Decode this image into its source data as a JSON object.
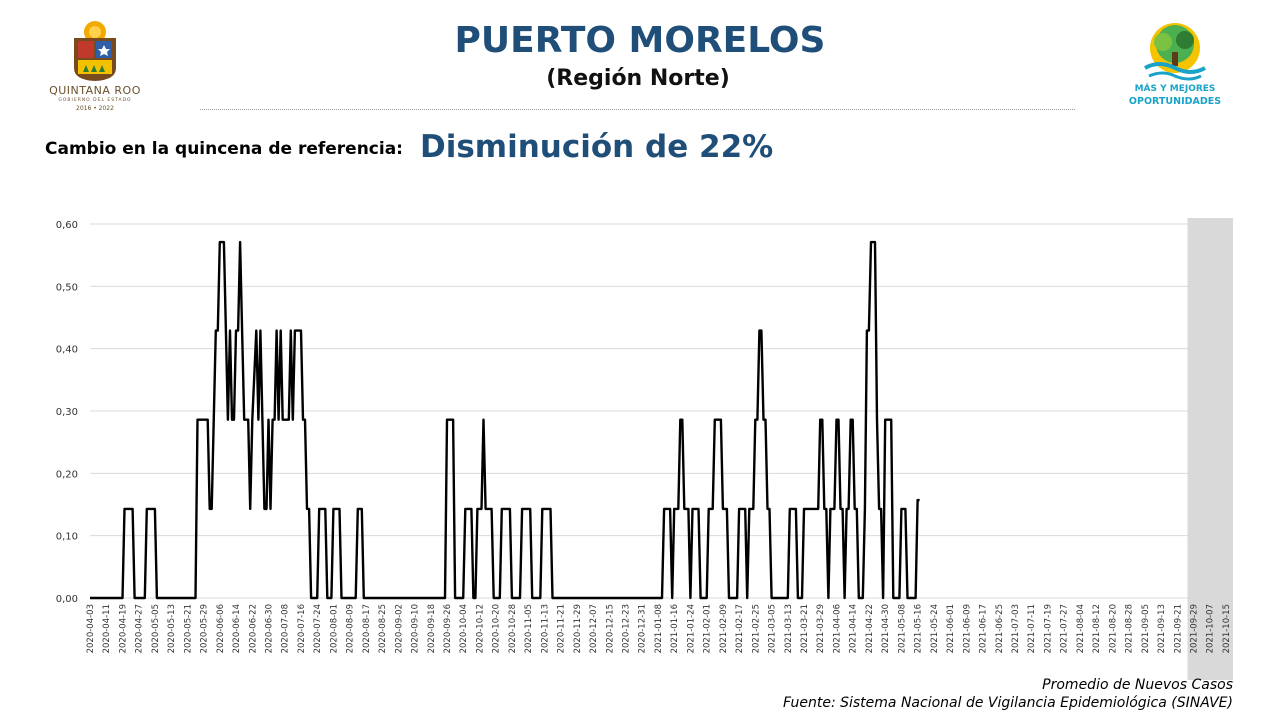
{
  "header": {
    "title": "PUERTO MORELOS",
    "subtitle": "(Región Norte)",
    "left_logo": {
      "name": "QUINTANA ROO",
      "sub": "GOBIERNO DEL ESTADO",
      "years": "2016 • 2022"
    },
    "right_logo": {
      "line1": "MÁS Y MEJORES",
      "line2": "OPORTUNIDADES"
    }
  },
  "change": {
    "label": "Cambio en la quincena de referencia:",
    "value": "Disminución de 22%"
  },
  "footer": {
    "line1": "Promedio de Nuevos Casos",
    "line2": "Fuente: Sistema Nacional de Vigilancia Epidemiológica (SINAVE)"
  },
  "colors": {
    "title": "#1f4e79",
    "line": "#000000",
    "grid": "#d9d9d9",
    "highlight": "#d9d9d9",
    "logo_brown": "#6b4f2a",
    "logo_blue": "#1aa3c9"
  },
  "chart_data": {
    "type": "line",
    "ylim": [
      0,
      0.6
    ],
    "yticks": [
      "0,00",
      "0,10",
      "0,20",
      "0,30",
      "0,40",
      "0,50",
      "0,60"
    ],
    "grid": true,
    "shaded_region": {
      "from": "2021-09-29",
      "to": "2021-10-15"
    },
    "x_tick_labels": [
      "2020-04-03",
      "2020-04-11",
      "2020-04-19",
      "2020-04-27",
      "2020-05-05",
      "2020-05-13",
      "2020-05-21",
      "2020-05-29",
      "2020-06-06",
      "2020-06-14",
      "2020-06-22",
      "2020-06-30",
      "2020-07-08",
      "2020-07-16",
      "2020-07-24",
      "2020-08-01",
      "2020-08-09",
      "2020-08-17",
      "2020-08-25",
      "2020-09-02",
      "2020-09-10",
      "2020-09-18",
      "2020-09-26",
      "2020-10-04",
      "2020-10-12",
      "2020-10-20",
      "2020-10-28",
      "2020-11-05",
      "2020-11-13",
      "2020-11-21",
      "2020-11-29",
      "2020-12-07",
      "2020-12-15",
      "2020-12-23",
      "2020-12-31",
      "2021-01-08",
      "2021-01-16",
      "2021-01-24",
      "2021-02-01",
      "2021-02-09",
      "2021-02-17",
      "2021-02-25",
      "2021-03-05",
      "2021-03-13",
      "2021-03-21",
      "2021-03-29",
      "2021-04-06",
      "2021-04-14",
      "2021-04-22",
      "2021-04-30",
      "2021-05-08",
      "2021-05-16",
      "2021-05-24",
      "2021-06-01",
      "2021-06-09",
      "2021-06-17",
      "2021-06-25",
      "2021-07-03",
      "2021-07-11",
      "2021-07-19",
      "2021-07-27",
      "2021-08-04",
      "2021-08-12",
      "2021-08-20",
      "2021-08-28",
      "2021-09-05",
      "2021-09-13",
      "2021-09-21",
      "2021-09-29",
      "2021-10-07",
      "2021-10-15"
    ],
    "series": [
      {
        "points": [
          [
            "2020-04-03",
            0
          ],
          [
            "2020-04-19",
            0
          ],
          [
            "2020-04-20",
            0.143
          ],
          [
            "2020-04-24",
            0.143
          ],
          [
            "2020-04-25",
            0
          ],
          [
            "2020-04-30",
            0
          ],
          [
            "2020-05-01",
            0.143
          ],
          [
            "2020-05-05",
            0.143
          ],
          [
            "2020-05-06",
            0
          ],
          [
            "2020-05-25",
            0
          ],
          [
            "2020-05-26",
            0.286
          ],
          [
            "2020-05-31",
            0.286
          ],
          [
            "2020-06-01",
            0.143
          ],
          [
            "2020-06-02",
            0.143
          ],
          [
            "2020-06-04",
            0.429
          ],
          [
            "2020-06-05",
            0.429
          ],
          [
            "2020-06-06",
            0.571
          ],
          [
            "2020-06-08",
            0.571
          ],
          [
            "2020-06-09",
            0.429
          ],
          [
            "2020-06-10",
            0.286
          ],
          [
            "2020-06-11",
            0.429
          ],
          [
            "2020-06-12",
            0.286
          ],
          [
            "2020-06-13",
            0.286
          ],
          [
            "2020-06-14",
            0.429
          ],
          [
            "2020-06-15",
            0.429
          ],
          [
            "2020-06-16",
            0.571
          ],
          [
            "2020-06-17",
            0.429
          ],
          [
            "2020-06-18",
            0.286
          ],
          [
            "2020-06-20",
            0.286
          ],
          [
            "2020-06-21",
            0.143
          ],
          [
            "2020-06-22",
            0.286
          ],
          [
            "2020-06-24",
            0.429
          ],
          [
            "2020-06-25",
            0.286
          ],
          [
            "2020-06-26",
            0.429
          ],
          [
            "2020-06-27",
            0.286
          ],
          [
            "2020-06-28",
            0.143
          ],
          [
            "2020-06-29",
            0.143
          ],
          [
            "2020-06-30",
            0.286
          ],
          [
            "2020-07-01",
            0.143
          ],
          [
            "2020-07-02",
            0.286
          ],
          [
            "2020-07-03",
            0.286
          ],
          [
            "2020-07-04",
            0.429
          ],
          [
            "2020-07-05",
            0.286
          ],
          [
            "2020-07-06",
            0.429
          ],
          [
            "2020-07-07",
            0.286
          ],
          [
            "2020-07-10",
            0.286
          ],
          [
            "2020-07-11",
            0.429
          ],
          [
            "2020-07-12",
            0.286
          ],
          [
            "2020-07-13",
            0.429
          ],
          [
            "2020-07-16",
            0.429
          ],
          [
            "2020-07-17",
            0.286
          ],
          [
            "2020-07-18",
            0.286
          ],
          [
            "2020-07-19",
            0.143
          ],
          [
            "2020-07-20",
            0.143
          ],
          [
            "2020-07-21",
            0
          ],
          [
            "2020-07-24",
            0
          ],
          [
            "2020-07-25",
            0.143
          ],
          [
            "2020-07-28",
            0.143
          ],
          [
            "2020-07-29",
            0
          ],
          [
            "2020-07-31",
            0
          ],
          [
            "2020-08-01",
            0.143
          ],
          [
            "2020-08-04",
            0.143
          ],
          [
            "2020-08-05",
            0
          ],
          [
            "2020-08-12",
            0
          ],
          [
            "2020-08-13",
            0.143
          ],
          [
            "2020-08-15",
            0.143
          ],
          [
            "2020-08-16",
            0
          ],
          [
            "2020-09-25",
            0
          ],
          [
            "2020-09-26",
            0.286
          ],
          [
            "2020-09-29",
            0.286
          ],
          [
            "2020-09-30",
            0
          ],
          [
            "2020-10-04",
            0
          ],
          [
            "2020-10-05",
            0.143
          ],
          [
            "2020-10-08",
            0.143
          ],
          [
            "2020-10-09",
            0
          ],
          [
            "2020-10-10",
            0
          ],
          [
            "2020-10-11",
            0.143
          ],
          [
            "2020-10-13",
            0.143
          ],
          [
            "2020-10-14",
            0.286
          ],
          [
            "2020-10-15",
            0.143
          ],
          [
            "2020-10-18",
            0.143
          ],
          [
            "2020-10-19",
            0
          ],
          [
            "2020-10-22",
            0
          ],
          [
            "2020-10-23",
            0.143
          ],
          [
            "2020-10-27",
            0.143
          ],
          [
            "2020-10-28",
            0
          ],
          [
            "2020-11-01",
            0
          ],
          [
            "2020-11-02",
            0.143
          ],
          [
            "2020-11-06",
            0.143
          ],
          [
            "2020-11-07",
            0
          ],
          [
            "2020-11-11",
            0
          ],
          [
            "2020-11-12",
            0.143
          ],
          [
            "2020-11-16",
            0.143
          ],
          [
            "2020-11-17",
            0
          ],
          [
            "2021-01-10",
            0
          ],
          [
            "2021-01-11",
            0.143
          ],
          [
            "2021-01-14",
            0.143
          ],
          [
            "2021-01-15",
            0
          ],
          [
            "2021-01-16",
            0.143
          ],
          [
            "2021-01-18",
            0.143
          ],
          [
            "2021-01-19",
            0.286
          ],
          [
            "2021-01-20",
            0.286
          ],
          [
            "2021-01-21",
            0.143
          ],
          [
            "2021-01-23",
            0.143
          ],
          [
            "2021-01-24",
            0
          ],
          [
            "2021-01-25",
            0.143
          ],
          [
            "2021-01-28",
            0.143
          ],
          [
            "2021-01-29",
            0
          ],
          [
            "2021-02-01",
            0
          ],
          [
            "2021-02-02",
            0.143
          ],
          [
            "2021-02-04",
            0.143
          ],
          [
            "2021-02-05",
            0.286
          ],
          [
            "2021-02-08",
            0.286
          ],
          [
            "2021-02-09",
            0.143
          ],
          [
            "2021-02-11",
            0.143
          ],
          [
            "2021-02-12",
            0
          ],
          [
            "2021-02-16",
            0
          ],
          [
            "2021-02-17",
            0.143
          ],
          [
            "2021-02-20",
            0.143
          ],
          [
            "2021-02-21",
            0
          ],
          [
            "2021-02-22",
            0.143
          ],
          [
            "2021-02-24",
            0.143
          ],
          [
            "2021-02-25",
            0.286
          ],
          [
            "2021-02-26",
            0.286
          ],
          [
            "2021-02-27",
            0.429
          ],
          [
            "2021-02-28",
            0.429
          ],
          [
            "2021-03-01",
            0.286
          ],
          [
            "2021-03-02",
            0.286
          ],
          [
            "2021-03-03",
            0.143
          ],
          [
            "2021-03-04",
            0.143
          ],
          [
            "2021-03-05",
            0
          ],
          [
            "2021-03-13",
            0
          ],
          [
            "2021-03-14",
            0.143
          ],
          [
            "2021-03-17",
            0.143
          ],
          [
            "2021-03-18",
            0
          ],
          [
            "2021-03-20",
            0
          ],
          [
            "2021-03-21",
            0.143
          ],
          [
            "2021-03-28",
            0.143
          ],
          [
            "2021-03-29",
            0.286
          ],
          [
            "2021-03-30",
            0.286
          ],
          [
            "2021-03-31",
            0.143
          ],
          [
            "2021-04-01",
            0.143
          ],
          [
            "2021-04-02",
            0
          ],
          [
            "2021-04-03",
            0.143
          ],
          [
            "2021-04-05",
            0.143
          ],
          [
            "2021-04-06",
            0.286
          ],
          [
            "2021-04-07",
            0.286
          ],
          [
            "2021-04-08",
            0.143
          ],
          [
            "2021-04-09",
            0.143
          ],
          [
            "2021-04-10",
            0
          ],
          [
            "2021-04-11",
            0.143
          ],
          [
            "2021-04-12",
            0.143
          ],
          [
            "2021-04-13",
            0.286
          ],
          [
            "2021-04-14",
            0.286
          ],
          [
            "2021-04-15",
            0.143
          ],
          [
            "2021-04-16",
            0.143
          ],
          [
            "2021-04-17",
            0
          ],
          [
            "2021-04-19",
            0
          ],
          [
            "2021-04-20",
            0.143
          ],
          [
            "2021-04-21",
            0.429
          ],
          [
            "2021-04-22",
            0.429
          ],
          [
            "2021-04-23",
            0.571
          ],
          [
            "2021-04-25",
            0.571
          ],
          [
            "2021-04-26",
            0.286
          ],
          [
            "2021-04-27",
            0.143
          ],
          [
            "2021-04-28",
            0.143
          ],
          [
            "2021-04-29",
            0
          ],
          [
            "2021-04-30",
            0.286
          ],
          [
            "2021-05-03",
            0.286
          ],
          [
            "2021-05-04",
            0
          ],
          [
            "2021-05-07",
            0
          ],
          [
            "2021-05-08",
            0.143
          ],
          [
            "2021-05-10",
            0.143
          ],
          [
            "2021-05-11",
            0
          ],
          [
            "2021-05-15",
            0
          ],
          [
            "2021-05-16",
            0.157
          ],
          [
            "2021-05-17",
            0.157
          ]
        ]
      }
    ]
  }
}
